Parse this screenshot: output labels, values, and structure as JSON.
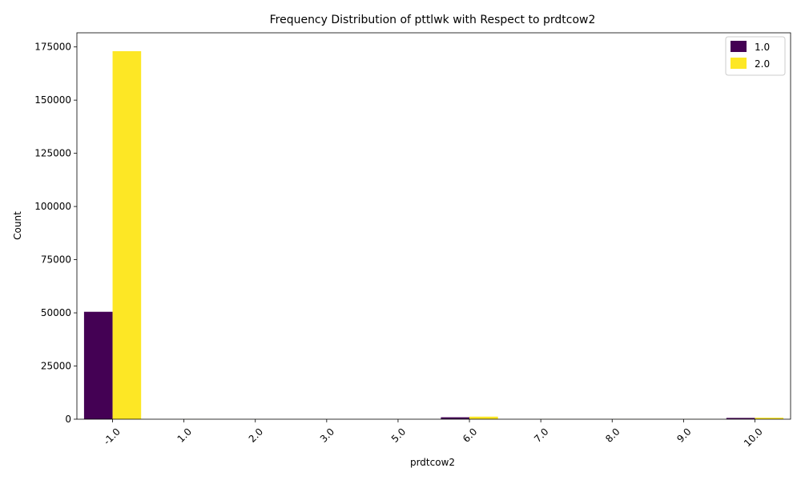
{
  "chart_data": {
    "type": "bar",
    "title": "Frequency Distribution of pttlwk with Respect to prdtcow2",
    "xlabel": "prdtcow2",
    "ylabel": "Count",
    "categories": [
      "-1.0",
      "1.0",
      "2.0",
      "3.0",
      "5.0",
      "6.0",
      "7.0",
      "8.0",
      "9.0",
      "10.0"
    ],
    "series": [
      {
        "name": "1.0",
        "color": "#440154",
        "values": [
          50500,
          10,
          5,
          5,
          5,
          900,
          10,
          10,
          10,
          600
        ]
      },
      {
        "name": "2.0",
        "color": "#fde725",
        "values": [
          173000,
          20,
          10,
          10,
          10,
          1200,
          20,
          20,
          20,
          700
        ]
      }
    ],
    "ylim": [
      0,
      181650
    ],
    "yticks": [
      0,
      25000,
      50000,
      75000,
      100000,
      125000,
      150000,
      175000
    ],
    "grid": false,
    "legend_position": "top-right"
  }
}
